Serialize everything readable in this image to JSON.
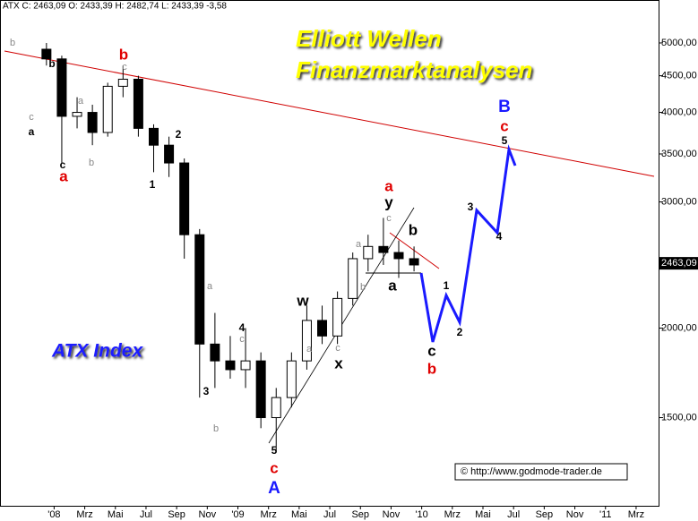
{
  "chart_data": {
    "type": "candlestick",
    "header": "ATX C: 2463,09 O: 2433,39 H: 2482,74 L: 2433,39 -3,58",
    "title": "Elliott Wellen",
    "subtitle": "Finanzmarktanalysen",
    "index_name": "ATX Index",
    "source": "© http://www.godmode-trader.de",
    "x": [
      "2007-12",
      "2008-01",
      "2008-02",
      "2008-03",
      "2008-04",
      "2008-05",
      "2008-06",
      "2008-07",
      "2008-08",
      "2008-09",
      "2008-10",
      "2008-11",
      "2008-12",
      "2009-01",
      "2009-02",
      "2009-03",
      "2009-04",
      "2009-05",
      "2009-06",
      "2009-07",
      "2009-08",
      "2009-09",
      "2009-10",
      "2009-11",
      "2009-12"
    ],
    "open": [
      4900,
      4750,
      3950,
      4000,
      3750,
      4350,
      4450,
      3800,
      3600,
      3400,
      2700,
      1900,
      1800,
      1750,
      1800,
      1500,
      1600,
      1800,
      2050,
      1950,
      2200,
      2500,
      2600,
      2550,
      2500
    ],
    "high": [
      5000,
      4800,
      4200,
      4100,
      4400,
      4650,
      4500,
      3850,
      3700,
      3450,
      2750,
      2100,
      1950,
      2000,
      1850,
      1650,
      1850,
      2150,
      2150,
      2250,
      2550,
      2700,
      2850,
      2650,
      2600
    ],
    "low": [
      4650,
      3400,
      3800,
      3600,
      3700,
      4200,
      3700,
      3300,
      3250,
      2500,
      1600,
      1650,
      1700,
      1650,
      1450,
      1350,
      1550,
      1750,
      1900,
      1900,
      2150,
      2400,
      2450,
      2350,
      2400
    ],
    "close": [
      4750,
      3950,
      4000,
      3750,
      4350,
      4450,
      3800,
      3600,
      3400,
      2700,
      1900,
      1800,
      1750,
      1800,
      1500,
      1600,
      1800,
      2050,
      1950,
      2200,
      2500,
      2600,
      2550,
      2500,
      2450
    ],
    "last_price": {
      "value": 2463.09,
      "label": "2463,09"
    },
    "log_scale": true,
    "ylim": [
      1130,
      5740
    ],
    "yticks": [
      {
        "value": 1500,
        "label": "1500,00"
      },
      {
        "value": 2000,
        "label": "2000,00"
      },
      {
        "value": 3000,
        "label": "3000,00"
      },
      {
        "value": 3500,
        "label": "3500,00"
      },
      {
        "value": 4000,
        "label": "4000,00"
      },
      {
        "value": 4500,
        "label": "4500,00"
      },
      {
        "value": 5000,
        "label": "5000,00"
      }
    ],
    "xlim": [
      "2007-09-15",
      "2011-04-15"
    ],
    "xticks": [
      {
        "value": "2008-01",
        "label": "'08"
      },
      {
        "value": "2008-03",
        "label": "Mrz"
      },
      {
        "value": "2008-05",
        "label": "Mai"
      },
      {
        "value": "2008-07",
        "label": "Jul"
      },
      {
        "value": "2008-09",
        "label": "Sep"
      },
      {
        "value": "2008-11",
        "label": "Nov"
      },
      {
        "value": "2009-01",
        "label": "'09"
      },
      {
        "value": "2009-03",
        "label": "Mrz"
      },
      {
        "value": "2009-05",
        "label": "Mai"
      },
      {
        "value": "2009-07",
        "label": "Jul"
      },
      {
        "value": "2009-09",
        "label": "Sep"
      },
      {
        "value": "2009-11",
        "label": "Nov"
      },
      {
        "value": "2010-01",
        "label": "'10"
      },
      {
        "value": "2010-03",
        "label": "Mrz"
      },
      {
        "value": "2010-05",
        "label": "Mai"
      },
      {
        "value": "2010-07",
        "label": "Jul"
      },
      {
        "value": "2010-09",
        "label": "Sep"
      },
      {
        "value": "2010-11",
        "label": "Nov"
      },
      {
        "value": "2011-01",
        "label": "'11"
      },
      {
        "value": "2011-03",
        "label": "Mrz"
      }
    ],
    "up_color": "#ffffff",
    "down_color": "#000000",
    "annotations": [
      {
        "text": "b",
        "color": "#888888"
      },
      {
        "text": "c",
        "color": "#888888"
      },
      {
        "text": "c",
        "color": "#888888"
      },
      {
        "text": "a",
        "color": "#888888"
      },
      {
        "text": "b",
        "color": "#888888"
      },
      {
        "text": "a",
        "color": "#888888"
      },
      {
        "text": "c",
        "color": "#888888"
      },
      {
        "text": "b",
        "color": "#888888"
      },
      {
        "text": "a",
        "color": "#888888"
      },
      {
        "text": "c",
        "color": "#888888"
      },
      {
        "text": "a",
        "color": "#888888"
      },
      {
        "text": "b",
        "color": "#888888"
      },
      {
        "text": "c",
        "color": "#888888"
      },
      {
        "text": "b",
        "color": "#000000"
      },
      {
        "text": "a",
        "color": "#000000"
      },
      {
        "text": "c",
        "color": "#000000"
      },
      {
        "text": "2",
        "color": "#000000"
      },
      {
        "text": "1",
        "color": "#000000"
      },
      {
        "text": "4",
        "color": "#000000"
      },
      {
        "text": "3",
        "color": "#000000"
      },
      {
        "text": "5",
        "color": "#000000"
      },
      {
        "text": "w",
        "color": "#000000"
      },
      {
        "text": "x",
        "color": "#000000"
      },
      {
        "text": "y",
        "color": "#000000"
      },
      {
        "text": "b",
        "color": "#000000"
      },
      {
        "text": "a",
        "color": "#000000"
      },
      {
        "text": "b",
        "color": "#e00000"
      },
      {
        "text": "a",
        "color": "#e00000"
      },
      {
        "text": "c",
        "color": "#e00000"
      },
      {
        "text": "a",
        "color": "#e00000"
      },
      {
        "text": "b",
        "color": "#e00000"
      },
      {
        "text": "c",
        "color": "#e00000"
      },
      {
        "text": "A",
        "color": "#1a1aff"
      },
      {
        "text": "B",
        "color": "#1a1aff"
      },
      {
        "text": "c",
        "color": "#000000"
      },
      {
        "text": "1",
        "color": "#000000"
      },
      {
        "text": "2",
        "color": "#000000"
      },
      {
        "text": "3",
        "color": "#000000"
      },
      {
        "text": "4",
        "color": "#000000"
      },
      {
        "text": "5",
        "color": "#000000"
      }
    ]
  }
}
